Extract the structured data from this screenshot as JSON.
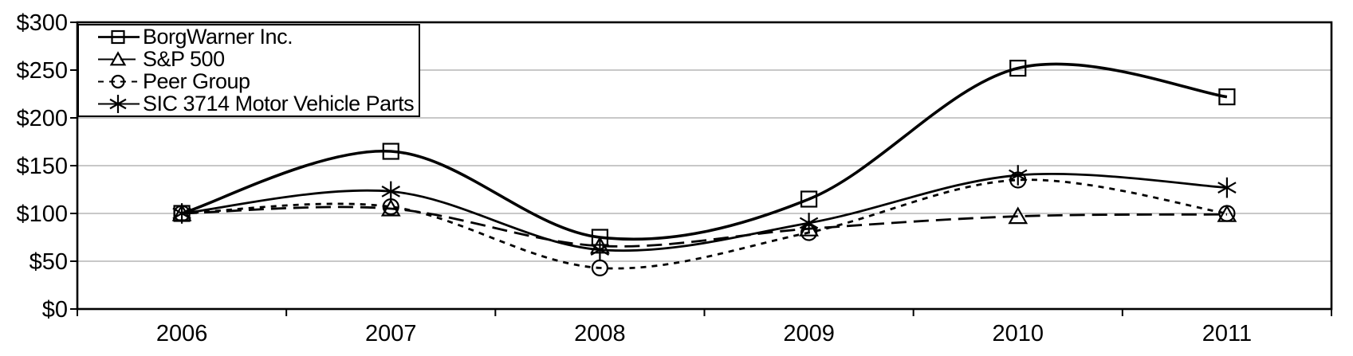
{
  "chart_data": {
    "type": "line",
    "title": "",
    "xlabel": "",
    "ylabel": "",
    "x_labels": [
      "2006",
      "2007",
      "2008",
      "2009",
      "2010",
      "2011"
    ],
    "y_tick_labels": [
      "$0",
      "$50",
      "$100",
      "$150",
      "$200",
      "$250",
      "$300"
    ],
    "y_tick_values": [
      0,
      50,
      100,
      150,
      200,
      250,
      300
    ],
    "ylim": [
      0,
      300
    ],
    "grid": "horizontal",
    "smoothed_lines": true,
    "legend_position": "top-left",
    "colors": {
      "series": "#000000",
      "gridline": "#a6a6a6",
      "frame": "#000000",
      "background": "#ffffff"
    },
    "series": [
      {
        "name": "BorgWarner Inc.",
        "marker": "square",
        "line_style": "solid",
        "line_width": 3.6,
        "values": [
          100,
          165,
          75,
          115,
          252,
          222
        ]
      },
      {
        "name": "S&P 500",
        "marker": "triangle",
        "line_style": "long-dash",
        "line_width": 2.8,
        "values": [
          100,
          105,
          66,
          84,
          97,
          99
        ]
      },
      {
        "name": "Peer Group",
        "marker": "circle",
        "line_style": "short-dash",
        "line_width": 2.8,
        "values": [
          100,
          107,
          43,
          80,
          135,
          100
        ]
      },
      {
        "name": "SIC 3714 Motor Vehicle Parts",
        "marker": "asterisk",
        "line_style": "solid",
        "line_width": 2.8,
        "values": [
          100,
          123,
          62,
          90,
          140,
          127
        ]
      }
    ]
  }
}
